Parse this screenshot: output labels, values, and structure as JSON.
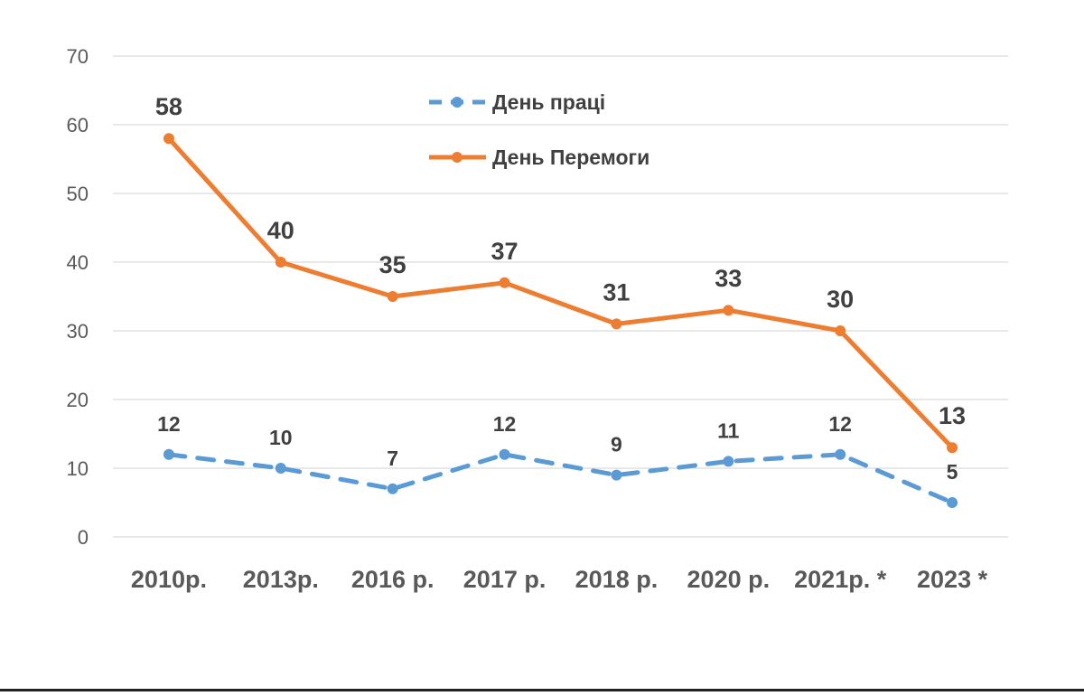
{
  "chart_data": {
    "type": "line",
    "categories": [
      "2010р.",
      "2013р.",
      "2016 р.",
      "2017 р.",
      "2018 р.",
      "2020 р.",
      "2021р. *",
      "2023 *"
    ],
    "series": [
      {
        "name": "День праці",
        "values": [
          12,
          10,
          7,
          12,
          9,
          11,
          12,
          5
        ],
        "color": "#5B9BD5",
        "dash": "dashed"
      },
      {
        "name": "День Перемоги",
        "values": [
          58,
          40,
          35,
          37,
          31,
          33,
          30,
          13
        ],
        "color": "#ED7D31",
        "dash": "solid"
      }
    ],
    "y_ticks": [
      "0",
      "10",
      "20",
      "30",
      "40",
      "50",
      "60",
      "70"
    ],
    "ylim": [
      0,
      70
    ],
    "grid": true,
    "legend_position": "top-center",
    "data_labels": true
  }
}
